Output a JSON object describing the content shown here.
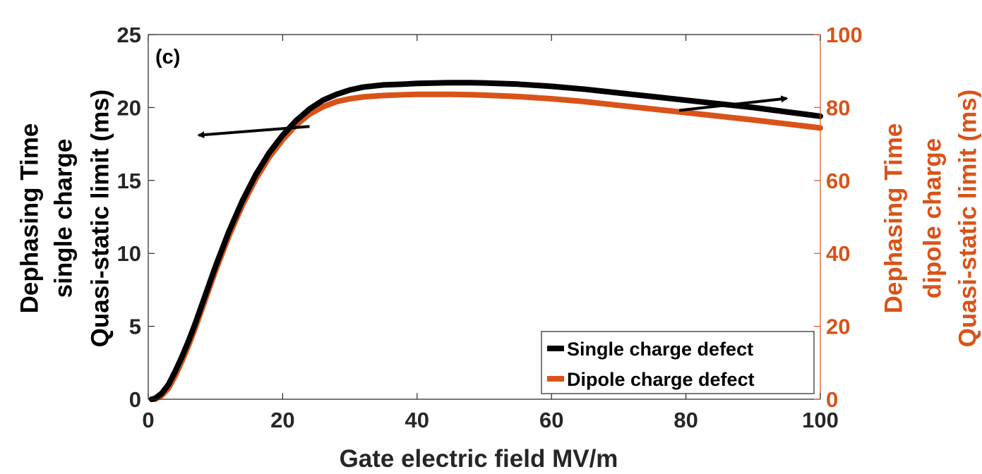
{
  "chart_data": {
    "type": "line",
    "panel_label": "(c)",
    "title": "",
    "xlabel": "Gate electric field MV/m",
    "ylabel_left": [
      "Dephasing Time",
      "single charge",
      "Quasi-static limit (ms)"
    ],
    "ylabel_right": [
      "Dephasing Time",
      "dipole charge",
      "Quasi-static limit (ms)"
    ],
    "xlim": [
      0,
      100
    ],
    "ylim_left": [
      0,
      25
    ],
    "ylim_right": [
      0,
      100
    ],
    "xticks": [
      0,
      20,
      40,
      60,
      80,
      100
    ],
    "yticks_left": [
      0,
      5,
      10,
      15,
      20,
      25
    ],
    "yticks_right": [
      0,
      20,
      40,
      60,
      80,
      100
    ],
    "grid": false,
    "legend_position": "bottom-right",
    "colors": {
      "single": "#000000",
      "dipole": "#d95319",
      "axis_right": "#d95319"
    },
    "series": [
      {
        "name": "Single charge defect",
        "axis": "left",
        "x": [
          0.5,
          1,
          2,
          3,
          4,
          5,
          6,
          7,
          8,
          9,
          10,
          12,
          14,
          16,
          18,
          20,
          22,
          24,
          26,
          28,
          30,
          32,
          35,
          38,
          40,
          45,
          48,
          50,
          55,
          60,
          65,
          70,
          75,
          80,
          85,
          90,
          95,
          100
        ],
        "values": [
          0.0,
          0.05,
          0.4,
          1.0,
          1.9,
          2.9,
          4.0,
          5.2,
          6.5,
          7.8,
          9.1,
          11.5,
          13.6,
          15.4,
          16.9,
          18.1,
          19.1,
          19.9,
          20.5,
          20.9,
          21.2,
          21.4,
          21.55,
          21.6,
          21.65,
          21.7,
          21.7,
          21.68,
          21.6,
          21.45,
          21.25,
          21.0,
          20.75,
          20.5,
          20.25,
          20.0,
          19.7,
          19.4
        ]
      },
      {
        "name": "Dipole charge defect",
        "axis": "right",
        "x": [
          0.5,
          1,
          2,
          3,
          4,
          5,
          6,
          7,
          8,
          9,
          10,
          12,
          14,
          16,
          18,
          20,
          22,
          24,
          26,
          28,
          30,
          32,
          35,
          38,
          40,
          45,
          48,
          50,
          55,
          60,
          65,
          70,
          75,
          80,
          85,
          90,
          95,
          100
        ],
        "values": [
          0.0,
          0.0,
          1.0,
          3.0,
          6.4,
          10.4,
          14.8,
          19.6,
          24.8,
          30.0,
          35.2,
          44.8,
          53.2,
          60.4,
          66.4,
          71.2,
          75.2,
          78.2,
          80.2,
          81.6,
          82.4,
          82.9,
          83.3,
          83.5,
          83.6,
          83.6,
          83.5,
          83.4,
          83.0,
          82.4,
          81.6,
          80.6,
          79.6,
          78.6,
          77.6,
          76.6,
          75.5,
          74.4
        ]
      }
    ],
    "annotations": [
      {
        "type": "arrow",
        "from": [
          24,
          18.7
        ],
        "to": [
          7.5,
          18.1
        ],
        "axis": "left",
        "color": "#000000"
      },
      {
        "type": "arrow",
        "from": [
          79,
          79.2
        ],
        "to": [
          95,
          82.5
        ],
        "axis": "right",
        "color": "#000000"
      }
    ]
  }
}
